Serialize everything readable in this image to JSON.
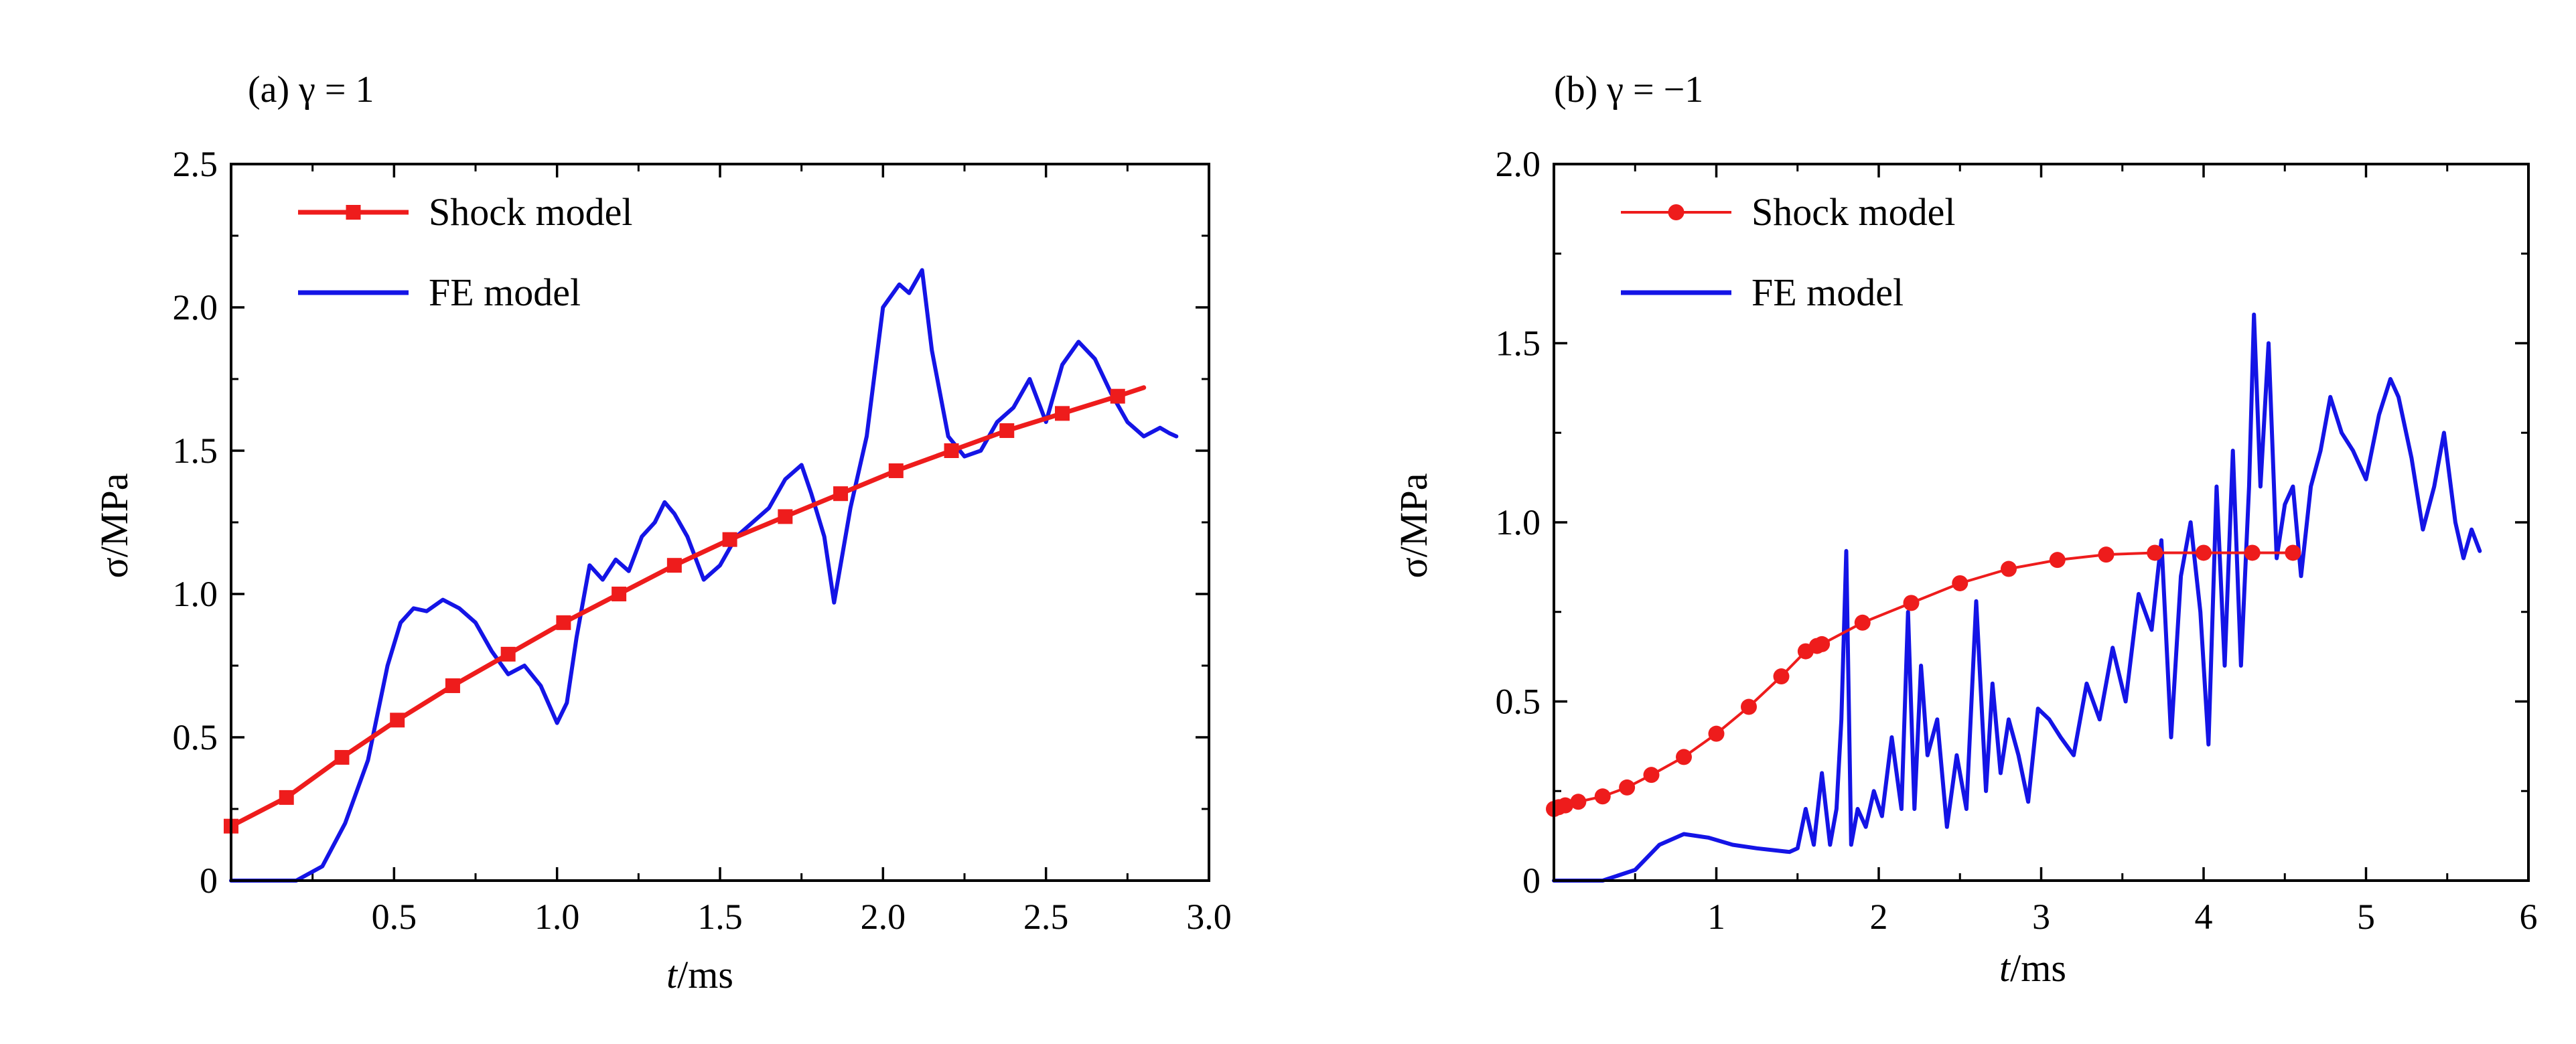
{
  "chart_data": [
    {
      "type": "line",
      "panel_label": "(a) γ = 1",
      "xlabel_italic": "t",
      "xlabel_unit": "/ms",
      "ylabel": "σ/MPa",
      "xlim": [
        0,
        3.0
      ],
      "ylim": [
        0,
        2.5
      ],
      "xticks": [
        0.5,
        1.0,
        1.5,
        2.0,
        2.5,
        3.0
      ],
      "xtick_labels": [
        "0.5",
        "1.0",
        "1.5",
        "2.0",
        "2.5",
        "3.0"
      ],
      "yticks": [
        0,
        0.5,
        1.0,
        1.5,
        2.0,
        2.5
      ],
      "ytick_labels": [
        "0",
        "0.5",
        "1.0",
        "1.5",
        "2.0",
        "2.5"
      ],
      "legend": "top-left",
      "series": [
        {
          "name": "Shock model",
          "color": "#ee1c1c",
          "marker": "square",
          "x": [
            0,
            0.17,
            0.34,
            0.51,
            0.68,
            0.85,
            1.02,
            1.19,
            1.36,
            1.53,
            1.7,
            1.87,
            2.04,
            2.21,
            2.38,
            2.55,
            2.72,
            2.8
          ],
          "y": [
            0.19,
            0.29,
            0.43,
            0.56,
            0.68,
            0.79,
            0.9,
            1.0,
            1.1,
            1.19,
            1.27,
            1.35,
            1.43,
            1.5,
            1.57,
            1.63,
            1.69,
            1.72
          ],
          "marker_x": [
            0,
            0.17,
            0.34,
            0.51,
            0.68,
            0.85,
            1.02,
            1.19,
            1.36,
            1.53,
            1.7,
            1.87,
            2.04,
            2.21,
            2.38,
            2.55,
            2.72
          ]
        },
        {
          "name": "FE model",
          "color": "#1414e6",
          "x": [
            0,
            0.2,
            0.28,
            0.35,
            0.42,
            0.48,
            0.52,
            0.56,
            0.6,
            0.65,
            0.7,
            0.75,
            0.8,
            0.85,
            0.9,
            0.95,
            1.0,
            1.03,
            1.06,
            1.1,
            1.14,
            1.18,
            1.22,
            1.26,
            1.3,
            1.33,
            1.36,
            1.4,
            1.45,
            1.5,
            1.55,
            1.6,
            1.65,
            1.7,
            1.75,
            1.78,
            1.82,
            1.85,
            1.9,
            1.95,
            2.0,
            2.05,
            2.08,
            2.12,
            2.15,
            2.2,
            2.25,
            2.3,
            2.35,
            2.4,
            2.45,
            2.5,
            2.55,
            2.6,
            2.65,
            2.7,
            2.75,
            2.8,
            2.85,
            2.88,
            2.9
          ],
          "y": [
            0,
            0,
            0.05,
            0.2,
            0.42,
            0.75,
            0.9,
            0.95,
            0.94,
            0.98,
            0.95,
            0.9,
            0.8,
            0.72,
            0.75,
            0.68,
            0.55,
            0.62,
            0.85,
            1.1,
            1.05,
            1.12,
            1.08,
            1.2,
            1.25,
            1.32,
            1.28,
            1.2,
            1.05,
            1.1,
            1.2,
            1.25,
            1.3,
            1.4,
            1.45,
            1.35,
            1.2,
            0.97,
            1.3,
            1.55,
            2.0,
            2.08,
            2.05,
            2.13,
            1.85,
            1.55,
            1.48,
            1.5,
            1.6,
            1.65,
            1.75,
            1.6,
            1.8,
            1.88,
            1.82,
            1.7,
            1.6,
            1.55,
            1.58,
            1.56,
            1.55
          ]
        }
      ]
    },
    {
      "type": "line",
      "panel_label": "(b) γ = −1",
      "xlabel_italic": "t",
      "xlabel_unit": "/ms",
      "ylabel": "σ/MPa",
      "xlim": [
        0,
        6
      ],
      "ylim": [
        0,
        2.0
      ],
      "xticks": [
        1,
        2,
        3,
        4,
        5,
        6
      ],
      "xtick_labels": [
        "1",
        "2",
        "3",
        "4",
        "5",
        "6"
      ],
      "yticks": [
        0,
        0.5,
        1.0,
        1.5,
        2.0
      ],
      "ytick_labels": [
        "0",
        "0.5",
        "1.0",
        "1.5",
        "2.0"
      ],
      "legend": "top-left",
      "series": [
        {
          "name": "Shock model",
          "color": "#ee1c1c",
          "marker": "circle",
          "x": [
            0,
            0.03,
            0.07,
            0.15,
            0.3,
            0.45,
            0.6,
            0.8,
            1.0,
            1.2,
            1.4,
            1.55,
            1.62,
            1.65,
            1.9,
            2.2,
            2.5,
            2.8,
            3.1,
            3.4,
            3.7,
            4.0,
            4.3,
            4.55
          ],
          "y": [
            0.2,
            0.205,
            0.21,
            0.22,
            0.235,
            0.26,
            0.295,
            0.345,
            0.41,
            0.485,
            0.57,
            0.64,
            0.655,
            0.66,
            0.72,
            0.775,
            0.83,
            0.87,
            0.895,
            0.91,
            0.915,
            0.915,
            0.915,
            0.915
          ],
          "marker_x": [
            0,
            0.03,
            0.07,
            0.15,
            0.3,
            0.45,
            0.6,
            0.8,
            1.0,
            1.2,
            1.4,
            1.55,
            1.62,
            1.65,
            1.9,
            2.2,
            2.5,
            2.8,
            3.1,
            3.4,
            3.7,
            4.0,
            4.3,
            4.55
          ]
        },
        {
          "name": "FE model",
          "color": "#1414e6",
          "x": [
            0,
            0.3,
            0.5,
            0.65,
            0.8,
            0.95,
            1.1,
            1.25,
            1.45,
            1.5,
            1.55,
            1.6,
            1.65,
            1.7,
            1.74,
            1.77,
            1.8,
            1.83,
            1.87,
            1.92,
            1.97,
            2.02,
            2.08,
            2.14,
            2.18,
            2.22,
            2.26,
            2.3,
            2.36,
            2.42,
            2.48,
            2.54,
            2.6,
            2.66,
            2.7,
            2.75,
            2.8,
            2.86,
            2.92,
            2.98,
            3.05,
            3.12,
            3.2,
            3.28,
            3.36,
            3.44,
            3.52,
            3.6,
            3.68,
            3.74,
            3.8,
            3.86,
            3.92,
            3.98,
            4.03,
            4.08,
            4.13,
            4.18,
            4.23,
            4.28,
            4.31,
            4.35,
            4.4,
            4.45,
            4.5,
            4.55,
            4.6,
            4.66,
            4.72,
            4.78,
            4.85,
            4.92,
            5.0,
            5.08,
            5.15,
            5.2,
            5.28,
            5.35,
            5.42,
            5.48,
            5.55,
            5.6,
            5.65,
            5.7
          ],
          "y": [
            0,
            0,
            0.03,
            0.1,
            0.13,
            0.12,
            0.1,
            0.09,
            0.08,
            0.09,
            0.2,
            0.1,
            0.3,
            0.1,
            0.2,
            0.45,
            0.92,
            0.1,
            0.2,
            0.15,
            0.25,
            0.18,
            0.4,
            0.2,
            0.75,
            0.2,
            0.6,
            0.35,
            0.45,
            0.15,
            0.35,
            0.2,
            0.78,
            0.25,
            0.55,
            0.3,
            0.45,
            0.35,
            0.22,
            0.48,
            0.45,
            0.4,
            0.35,
            0.55,
            0.45,
            0.65,
            0.5,
            0.8,
            0.7,
            0.95,
            0.4,
            0.85,
            1.0,
            0.75,
            0.38,
            1.1,
            0.6,
            1.2,
            0.6,
            1.1,
            1.58,
            1.1,
            1.5,
            0.9,
            1.05,
            1.1,
            0.85,
            1.1,
            1.2,
            1.35,
            1.25,
            1.2,
            1.12,
            1.3,
            1.4,
            1.35,
            1.18,
            0.98,
            1.1,
            1.25,
            1.0,
            0.9,
            0.98,
            0.92
          ]
        }
      ]
    }
  ]
}
